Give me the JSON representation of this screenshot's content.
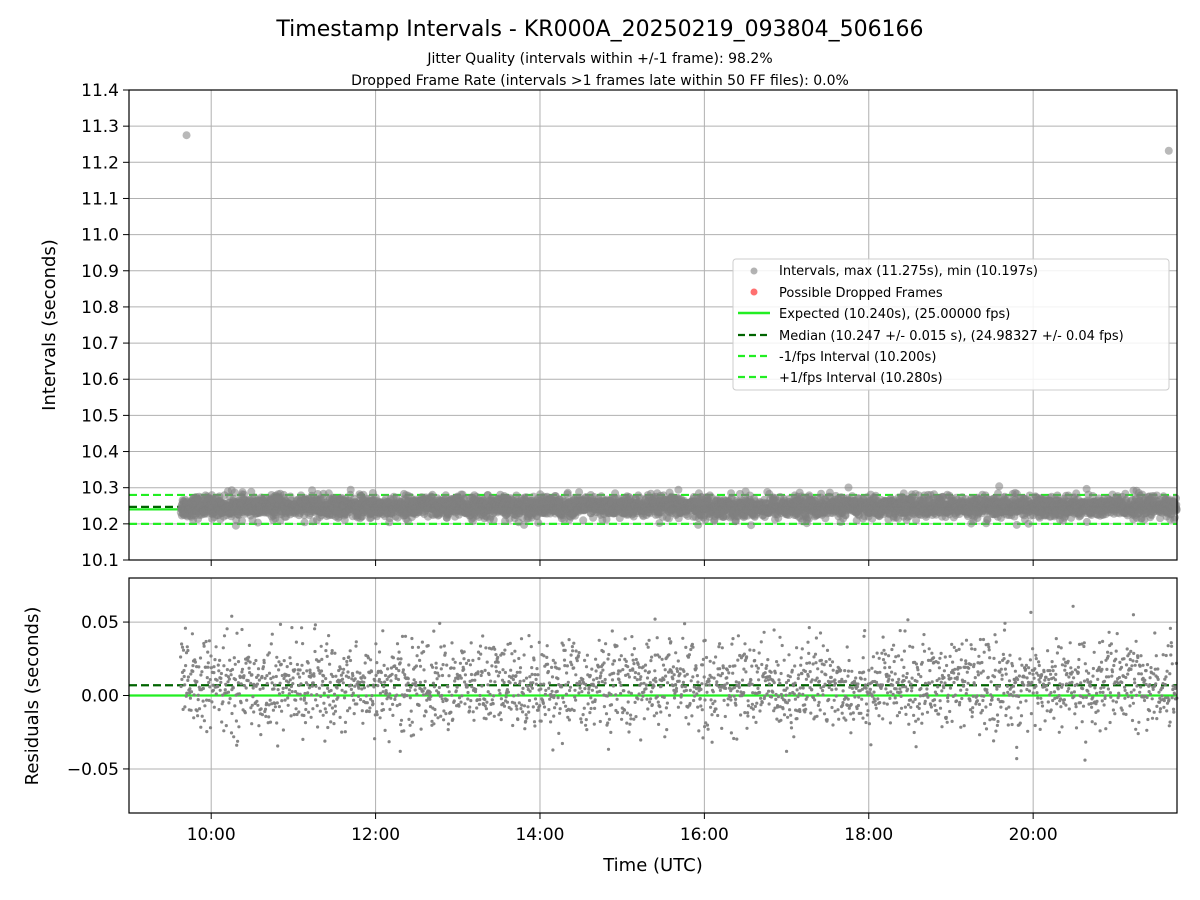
{
  "chart_data": [
    {
      "type": "scatter",
      "title": "Timestamp Intervals - KR000A_20250219_093804_506166",
      "subtitle_lines": [
        "Jitter Quality (intervals within +/-1 frame): 98.2%",
        "Dropped Frame Rate (intervals >1 frames late within 50 FF files): 0.0%"
      ],
      "xlabel": "",
      "ylabel": "Intervals (seconds)",
      "xlim_hours": [
        9.0,
        21.75
      ],
      "ylim": [
        10.1,
        11.4
      ],
      "grid": true,
      "x_tick_hours": [
        10,
        12,
        14,
        16,
        18,
        20
      ],
      "x_tick_labels": [
        "10:00",
        "12:00",
        "14:00",
        "16:00",
        "18:00",
        "20:00"
      ],
      "x_tick_labels_visible": false,
      "y_ticks": [
        10.1,
        10.2,
        10.3,
        10.4,
        10.5,
        10.6,
        10.7,
        10.8,
        10.9,
        11.0,
        11.1,
        11.2,
        11.3,
        11.4
      ],
      "y_tick_labels": [
        "10.1",
        "10.2",
        "10.3",
        "10.4",
        "10.5",
        "10.6",
        "10.7",
        "10.8",
        "10.9",
        "11.0",
        "11.1",
        "11.2",
        "11.3",
        "11.4"
      ],
      "series": [
        {
          "name": "Intervals, max (11.275s), min (10.197s)",
          "kind": "points",
          "color": "#808080",
          "x_range_hours": [
            9.63,
            21.75
          ],
          "center": 10.247,
          "spread": 0.015,
          "count": 4200,
          "outliers": [
            {
              "t": 9.7,
              "v": 11.275
            },
            {
              "t": 21.65,
              "v": 11.232
            },
            {
              "t": 10.25,
              "v": 10.293
            },
            {
              "t": 21.22,
              "v": 10.292
            },
            {
              "t": 19.8,
              "v": 10.197
            }
          ]
        },
        {
          "name": "Possible Dropped Frames",
          "kind": "points",
          "color": "#ff6060",
          "values": []
        },
        {
          "name": "Expected (10.240s), (25.00000 fps)",
          "kind": "hline",
          "value": 10.24,
          "color": "#22ee22",
          "style": "solid"
        },
        {
          "name": "Median (10.247 +/- 0.015 s), (24.98327 +/- 0.04 fps)",
          "kind": "hline",
          "value": 10.247,
          "color": "#006400",
          "style": "dashed"
        },
        {
          "name": "-1/fps Interval (10.200s)",
          "kind": "hline",
          "value": 10.2,
          "color": "#22ee22",
          "style": "dashed"
        },
        {
          "name": "+1/fps Interval (10.280s)",
          "kind": "hline",
          "value": 10.28,
          "color": "#22ee22",
          "style": "dashed"
        }
      ],
      "legend_position": "center-right"
    },
    {
      "type": "scatter",
      "title": "",
      "xlabel": "Time (UTC)",
      "ylabel": "Residuals (seconds)",
      "xlim_hours": [
        9.0,
        21.75
      ],
      "ylim": [
        -0.08,
        0.08
      ],
      "grid": true,
      "x_tick_hours": [
        10,
        12,
        14,
        16,
        18,
        20
      ],
      "x_tick_labels": [
        "10:00",
        "12:00",
        "14:00",
        "16:00",
        "18:00",
        "20:00"
      ],
      "y_ticks": [
        -0.05,
        0.0,
        0.05
      ],
      "y_tick_labels": [
        "−0.05",
        "0.00",
        "0.05"
      ],
      "series": [
        {
          "name": "Residuals",
          "kind": "points",
          "color": "#808080",
          "x_range_hours": [
            9.63,
            21.75
          ],
          "center": 0.007,
          "spread": 0.015,
          "count": 2600,
          "outliers": [
            {
              "t": 10.25,
              "v": 0.054
            },
            {
              "t": 15.4,
              "v": 0.052
            },
            {
              "t": 21.22,
              "v": 0.055
            },
            {
              "t": 19.8,
              "v": -0.043
            },
            {
              "t": 17.0,
              "v": -0.038
            },
            {
              "t": 12.3,
              "v": -0.038
            }
          ]
        },
        {
          "name": "Expected",
          "kind": "hline",
          "value": 0.0,
          "color": "#22ee22",
          "style": "solid"
        },
        {
          "name": "Median",
          "kind": "hline",
          "value": 0.007,
          "color": "#006400",
          "style": "dashed"
        }
      ]
    }
  ]
}
